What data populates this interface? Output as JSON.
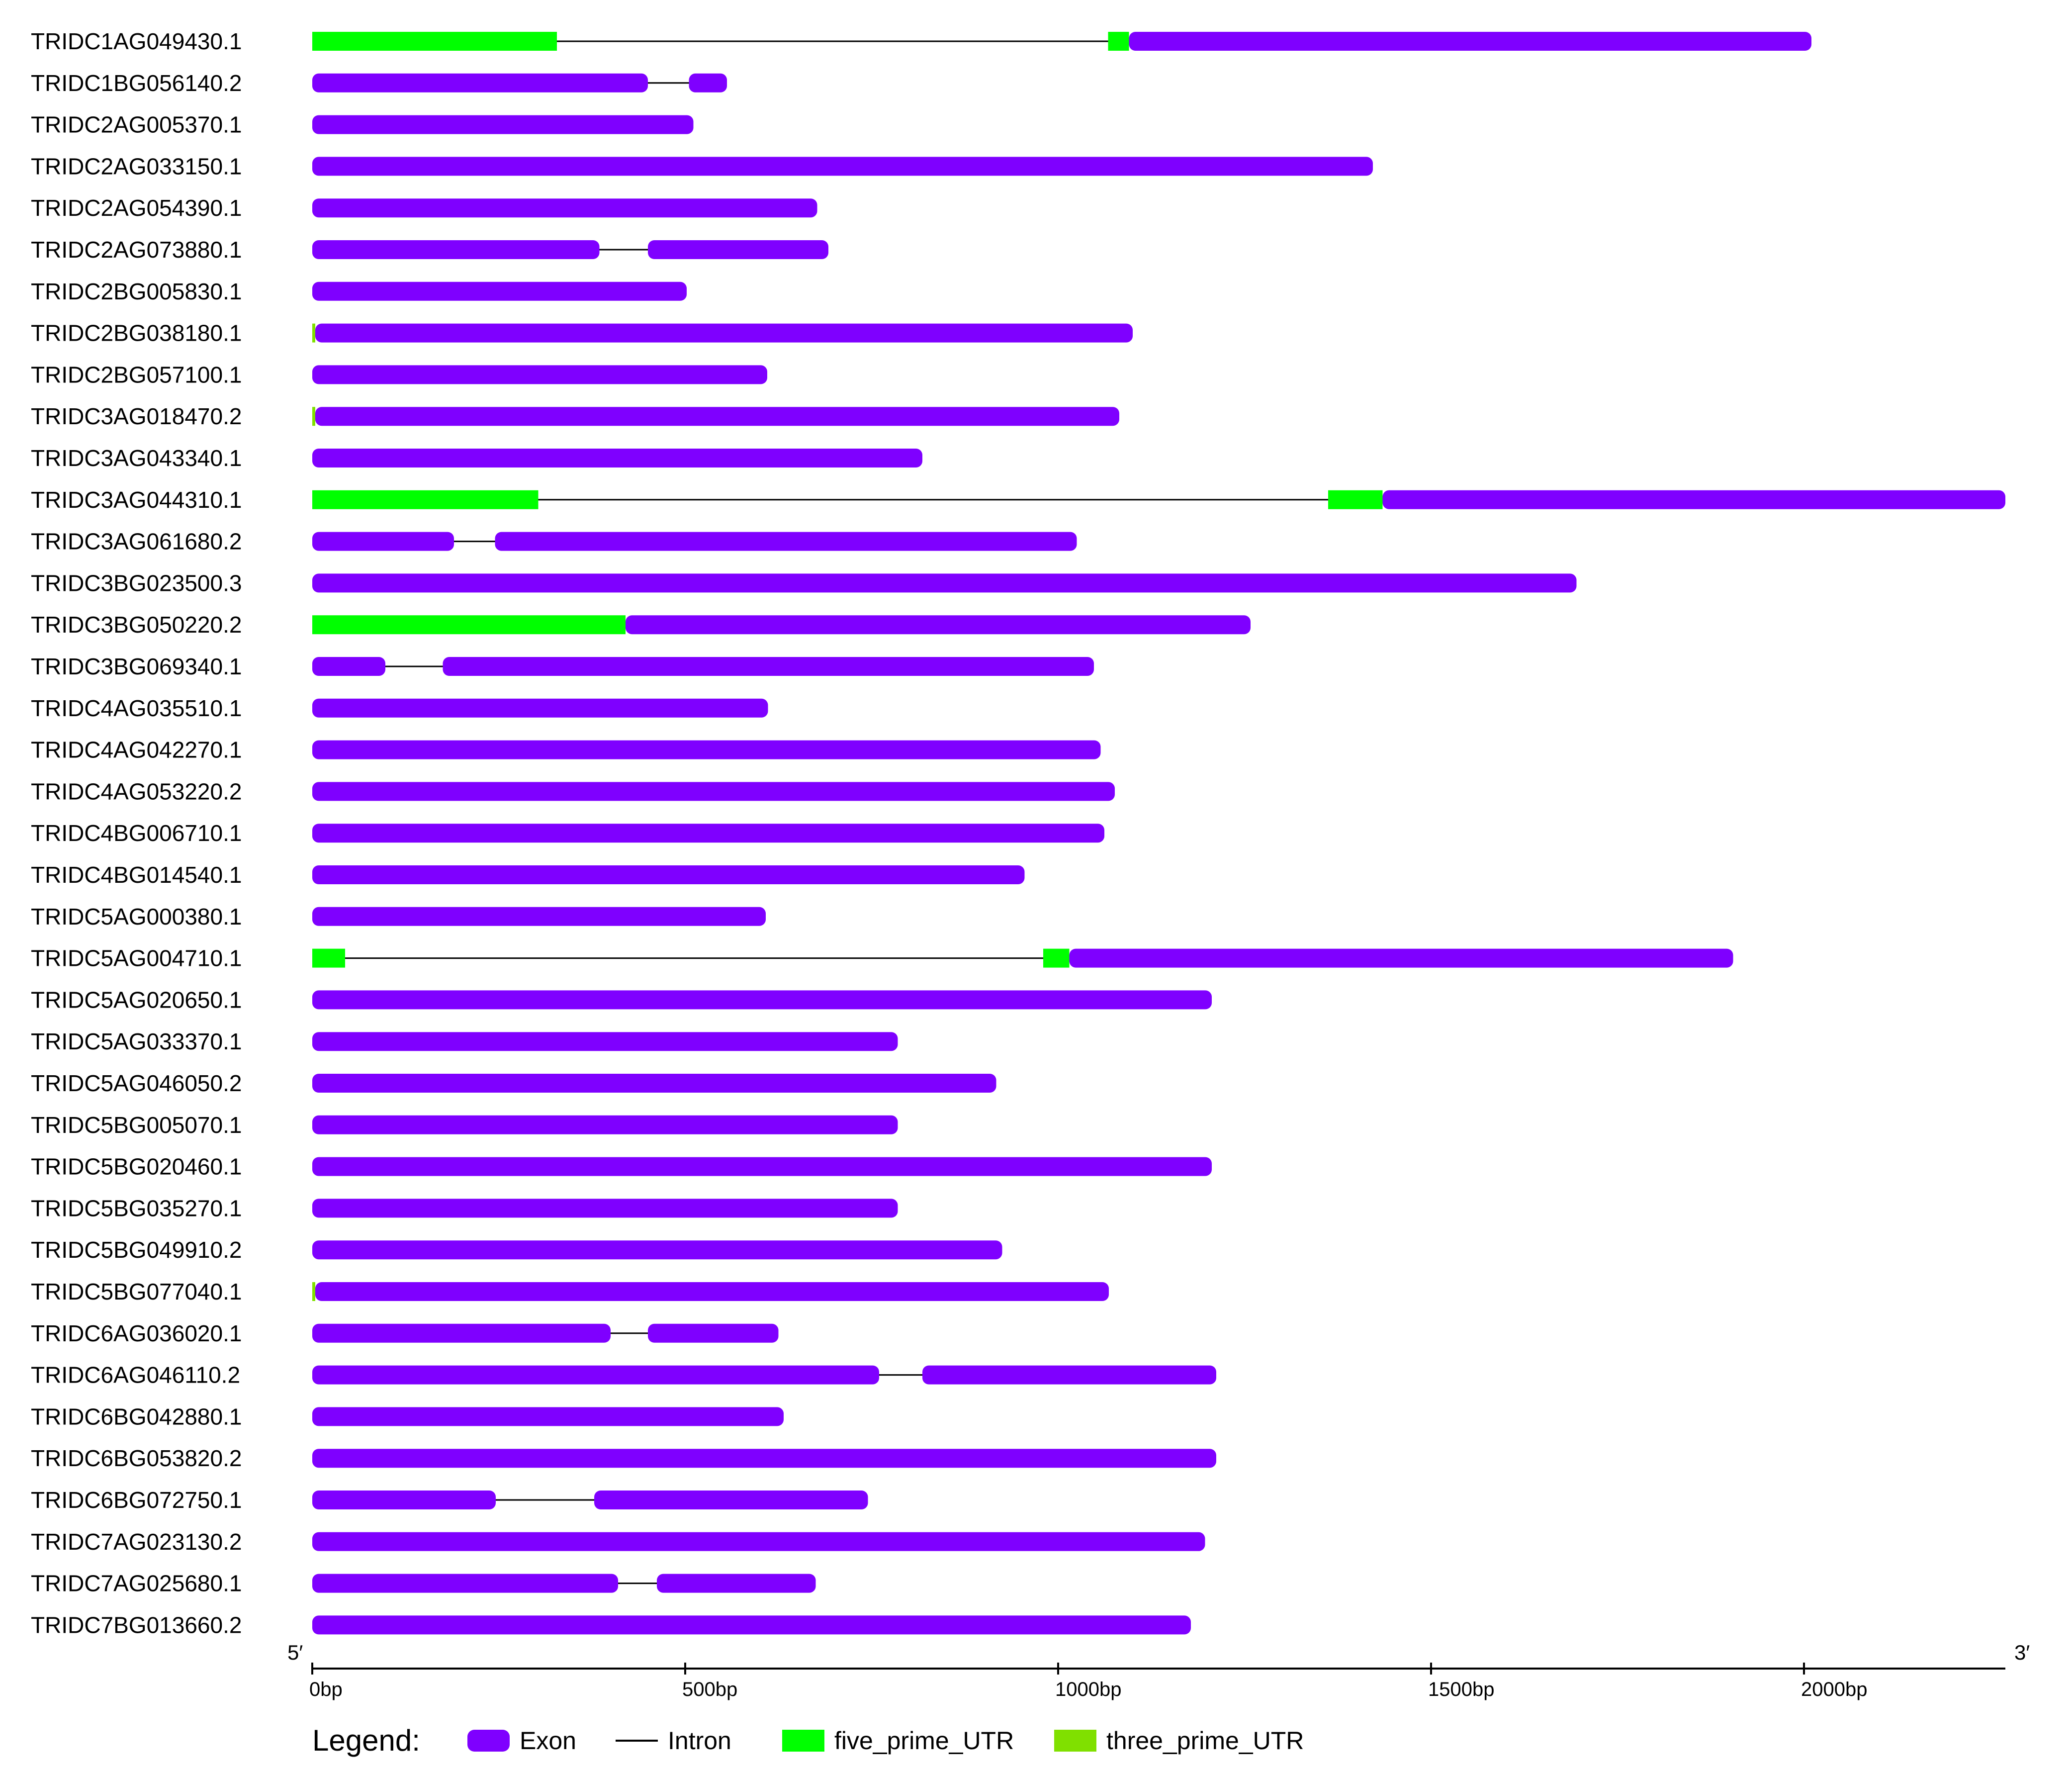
{
  "colors": {
    "exon": "#7f00ff",
    "intron": "#000000",
    "five_prime_utr": "#00ff00",
    "three_prime_utr": "#80e000",
    "axis": "#000000"
  },
  "axis": {
    "min_bp": 0,
    "max_bp": 2270,
    "ticks": [
      {
        "value": 0,
        "label": "0bp"
      },
      {
        "value": 500,
        "label": "500bp"
      },
      {
        "value": 1000,
        "label": "1000bp"
      },
      {
        "value": 1500,
        "label": "1500bp"
      },
      {
        "value": 2000,
        "label": "2000bp"
      }
    ],
    "start_label": "5′",
    "end_label": "3′"
  },
  "legend": {
    "title": "Legend:",
    "items": [
      {
        "key": "exon",
        "label": "Exon",
        "shape": "rounded-bar"
      },
      {
        "key": "intron",
        "label": "Intron",
        "shape": "line"
      },
      {
        "key": "five_prime_utr",
        "label": "five_prime_UTR",
        "shape": "bar"
      },
      {
        "key": "three_prime_utr",
        "label": "three_prime_UTR",
        "shape": "bar"
      }
    ]
  },
  "genes": [
    {
      "id": "TRIDC1AG049430.1",
      "length": 2010,
      "features": [
        {
          "type": "five_prime_utr",
          "start": 0,
          "end": 328
        },
        {
          "type": "five_prime_utr",
          "start": 1067,
          "end": 1095
        },
        {
          "type": "exon",
          "start": 1095,
          "end": 2010
        }
      ]
    },
    {
      "id": "TRIDC1BG056140.2",
      "length": 556,
      "features": [
        {
          "type": "exon",
          "start": 0,
          "end": 450
        },
        {
          "type": "exon",
          "start": 505,
          "end": 556
        }
      ]
    },
    {
      "id": "TRIDC2AG005370.1",
      "length": 511,
      "features": [
        {
          "type": "exon",
          "start": 0,
          "end": 511
        }
      ]
    },
    {
      "id": "TRIDC2AG033150.1",
      "length": 1422,
      "features": [
        {
          "type": "exon",
          "start": 0,
          "end": 1422
        }
      ]
    },
    {
      "id": "TRIDC2AG054390.1",
      "length": 677,
      "features": [
        {
          "type": "exon",
          "start": 0,
          "end": 677
        }
      ]
    },
    {
      "id": "TRIDC2AG073880.1",
      "length": 692,
      "features": [
        {
          "type": "exon",
          "start": 0,
          "end": 385
        },
        {
          "type": "exon",
          "start": 450,
          "end": 692
        }
      ]
    },
    {
      "id": "TRIDC2BG005830.1",
      "length": 502,
      "features": [
        {
          "type": "exon",
          "start": 0,
          "end": 502
        }
      ]
    },
    {
      "id": "TRIDC2BG038180.1",
      "length": 1100,
      "features": [
        {
          "type": "three_prime_utr",
          "start": 0,
          "end": 4
        },
        {
          "type": "exon",
          "start": 4,
          "end": 1100
        }
      ]
    },
    {
      "id": "TRIDC2BG057100.1",
      "length": 610,
      "features": [
        {
          "type": "exon",
          "start": 0,
          "end": 610
        }
      ]
    },
    {
      "id": "TRIDC3AG018470.2",
      "length": 1082,
      "features": [
        {
          "type": "three_prime_utr",
          "start": 0,
          "end": 4
        },
        {
          "type": "exon",
          "start": 4,
          "end": 1082
        }
      ]
    },
    {
      "id": "TRIDC3AG043340.1",
      "length": 818,
      "features": [
        {
          "type": "exon",
          "start": 0,
          "end": 818
        }
      ]
    },
    {
      "id": "TRIDC3AG044310.1",
      "length": 2270,
      "features": [
        {
          "type": "five_prime_utr",
          "start": 0,
          "end": 303
        },
        {
          "type": "five_prime_utr",
          "start": 1362,
          "end": 1435
        },
        {
          "type": "exon",
          "start": 1435,
          "end": 2270
        }
      ]
    },
    {
      "id": "TRIDC3AG061680.2",
      "length": 1025,
      "features": [
        {
          "type": "exon",
          "start": 0,
          "end": 190
        },
        {
          "type": "exon",
          "start": 245,
          "end": 1025
        }
      ]
    },
    {
      "id": "TRIDC3BG023500.3",
      "length": 1695,
      "features": [
        {
          "type": "exon",
          "start": 0,
          "end": 1695
        }
      ]
    },
    {
      "id": "TRIDC3BG050220.2",
      "length": 1258,
      "features": [
        {
          "type": "five_prime_utr",
          "start": 0,
          "end": 420
        },
        {
          "type": "exon",
          "start": 420,
          "end": 1258
        }
      ]
    },
    {
      "id": "TRIDC3BG069340.1",
      "length": 1048,
      "features": [
        {
          "type": "exon",
          "start": 0,
          "end": 98
        },
        {
          "type": "exon",
          "start": 175,
          "end": 1048
        }
      ]
    },
    {
      "id": "TRIDC4AG035510.1",
      "length": 611,
      "features": [
        {
          "type": "exon",
          "start": 0,
          "end": 611
        }
      ]
    },
    {
      "id": "TRIDC4AG042270.1",
      "length": 1057,
      "features": [
        {
          "type": "exon",
          "start": 0,
          "end": 1057
        }
      ]
    },
    {
      "id": "TRIDC4AG053220.2",
      "length": 1076,
      "features": [
        {
          "type": "exon",
          "start": 0,
          "end": 1076
        }
      ]
    },
    {
      "id": "TRIDC4BG006710.1",
      "length": 1062,
      "features": [
        {
          "type": "exon",
          "start": 0,
          "end": 1062
        }
      ]
    },
    {
      "id": "TRIDC4BG014540.1",
      "length": 955,
      "features": [
        {
          "type": "exon",
          "start": 0,
          "end": 955
        }
      ]
    },
    {
      "id": "TRIDC5AG000380.1",
      "length": 608,
      "features": [
        {
          "type": "exon",
          "start": 0,
          "end": 608
        }
      ]
    },
    {
      "id": "TRIDC5AG004710.1",
      "length": 1905,
      "features": [
        {
          "type": "five_prime_utr",
          "start": 0,
          "end": 44
        },
        {
          "type": "five_prime_utr",
          "start": 980,
          "end": 1015
        },
        {
          "type": "exon",
          "start": 1015,
          "end": 1905
        }
      ]
    },
    {
      "id": "TRIDC5AG020650.1",
      "length": 1206,
      "features": [
        {
          "type": "exon",
          "start": 0,
          "end": 1206
        }
      ]
    },
    {
      "id": "TRIDC5AG033370.1",
      "length": 785,
      "features": [
        {
          "type": "exon",
          "start": 0,
          "end": 785
        }
      ]
    },
    {
      "id": "TRIDC5AG046050.2",
      "length": 917,
      "features": [
        {
          "type": "exon",
          "start": 0,
          "end": 917
        }
      ]
    },
    {
      "id": "TRIDC5BG005070.1",
      "length": 785,
      "features": [
        {
          "type": "exon",
          "start": 0,
          "end": 785
        }
      ]
    },
    {
      "id": "TRIDC5BG020460.1",
      "length": 1206,
      "features": [
        {
          "type": "exon",
          "start": 0,
          "end": 1206
        }
      ]
    },
    {
      "id": "TRIDC5BG035270.1",
      "length": 785,
      "features": [
        {
          "type": "exon",
          "start": 0,
          "end": 785
        }
      ]
    },
    {
      "id": "TRIDC5BG049910.2",
      "length": 925,
      "features": [
        {
          "type": "exon",
          "start": 0,
          "end": 925
        }
      ]
    },
    {
      "id": "TRIDC5BG077040.1",
      "length": 1068,
      "features": [
        {
          "type": "three_prime_utr",
          "start": 0,
          "end": 4
        },
        {
          "type": "exon",
          "start": 4,
          "end": 1068
        }
      ]
    },
    {
      "id": "TRIDC6AG036020.1",
      "length": 625,
      "features": [
        {
          "type": "exon",
          "start": 0,
          "end": 400
        },
        {
          "type": "exon",
          "start": 450,
          "end": 625
        }
      ]
    },
    {
      "id": "TRIDC6AG046110.2",
      "length": 1212,
      "features": [
        {
          "type": "exon",
          "start": 0,
          "end": 760
        },
        {
          "type": "exon",
          "start": 818,
          "end": 1212
        }
      ]
    },
    {
      "id": "TRIDC6BG042880.1",
      "length": 632,
      "features": [
        {
          "type": "exon",
          "start": 0,
          "end": 632
        }
      ]
    },
    {
      "id": "TRIDC6BG053820.2",
      "length": 1212,
      "features": [
        {
          "type": "exon",
          "start": 0,
          "end": 1212
        }
      ]
    },
    {
      "id": "TRIDC6BG072750.1",
      "length": 745,
      "features": [
        {
          "type": "exon",
          "start": 0,
          "end": 246
        },
        {
          "type": "exon",
          "start": 378,
          "end": 745
        }
      ]
    },
    {
      "id": "TRIDC7AG023130.2",
      "length": 1197,
      "features": [
        {
          "type": "exon",
          "start": 0,
          "end": 1197
        }
      ]
    },
    {
      "id": "TRIDC7AG025680.1",
      "length": 675,
      "features": [
        {
          "type": "exon",
          "start": 0,
          "end": 410
        },
        {
          "type": "exon",
          "start": 462,
          "end": 675
        }
      ]
    },
    {
      "id": "TRIDC7BG013660.2",
      "length": 1178,
      "features": [
        {
          "type": "exon",
          "start": 0,
          "end": 1178
        }
      ]
    }
  ]
}
